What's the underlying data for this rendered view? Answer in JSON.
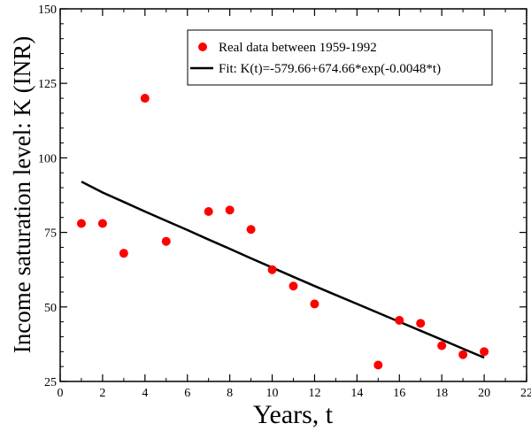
{
  "chart_data": {
    "type": "scatter",
    "xlabel": "Years, t",
    "ylabel": "Income saturation level: K (INR)",
    "xlim": [
      0,
      22
    ],
    "ylim": [
      25,
      150
    ],
    "x_ticks": [
      0,
      2,
      4,
      6,
      8,
      10,
      12,
      14,
      16,
      18,
      20,
      22
    ],
    "y_ticks": [
      25,
      50,
      75,
      100,
      125,
      150
    ],
    "grid": false,
    "legend_position": "top-right",
    "series": [
      {
        "name": "Real data between 1959-1992",
        "kind": "scatter",
        "color": "#ff0000",
        "x": [
          1,
          2,
          3,
          4,
          5,
          7,
          8,
          9,
          10,
          11,
          12,
          15,
          16,
          17,
          18,
          19,
          20
        ],
        "y": [
          78,
          78,
          68,
          120,
          72,
          82,
          82.5,
          76,
          62.5,
          57,
          51,
          30.5,
          45.5,
          44.5,
          37,
          34,
          35
        ]
      },
      {
        "name": "Fit: K(t)=-579.66+674.66*exp(-0.0048*t)",
        "kind": "line",
        "color": "#000000",
        "x": [
          1,
          2,
          3,
          4,
          5,
          6,
          7,
          8,
          9,
          10,
          11,
          12,
          13,
          14,
          15,
          16,
          17,
          18,
          19,
          20
        ],
        "y": [
          92,
          88.4,
          85.2,
          82,
          78.9,
          75.8,
          72.6,
          69.5,
          66.3,
          63.2,
          60.1,
          57,
          54,
          51,
          48,
          45,
          42,
          39,
          36,
          33
        ]
      }
    ]
  }
}
